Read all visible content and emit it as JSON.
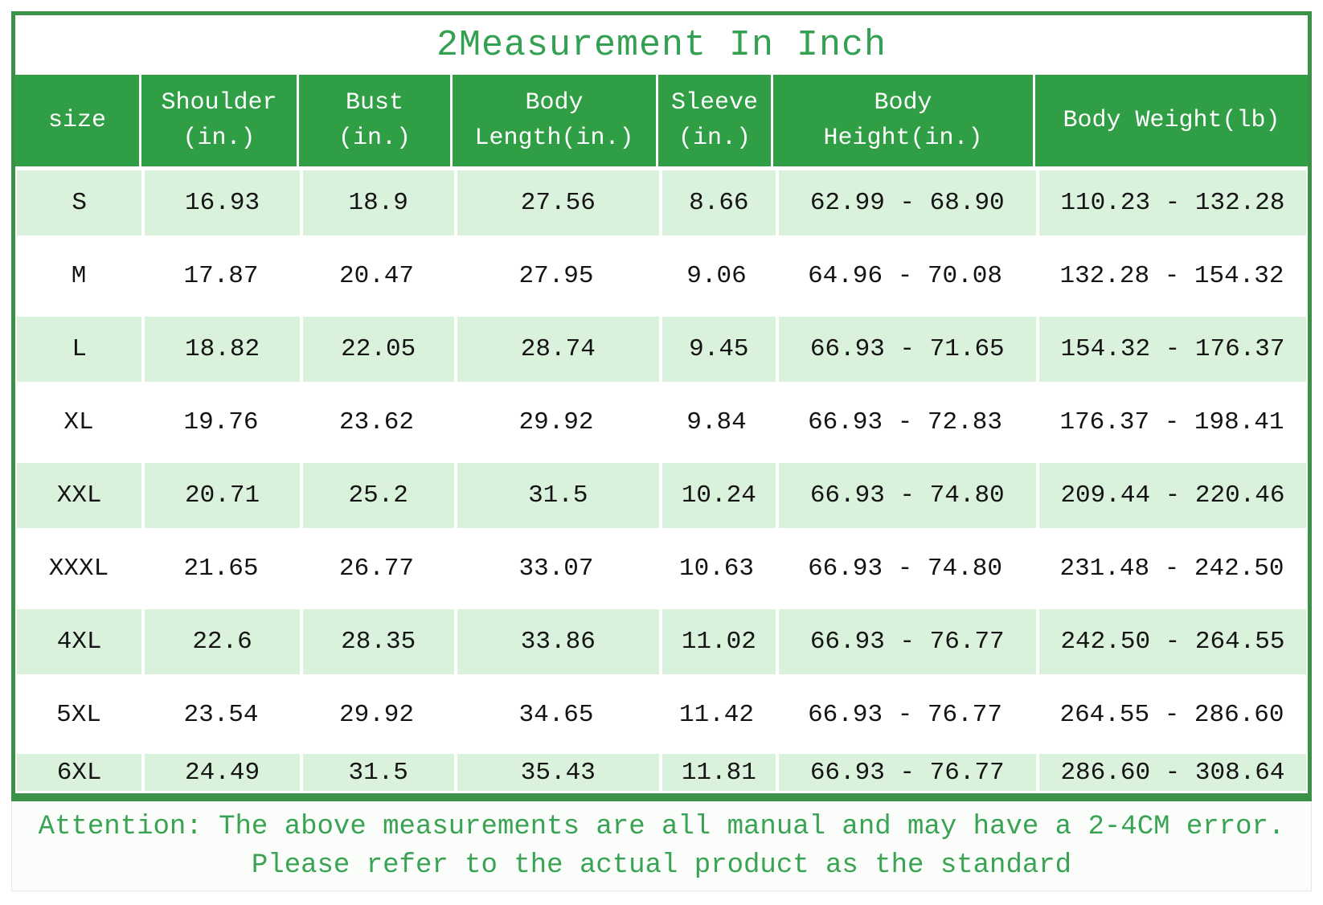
{
  "title": "2Measurement In Inch",
  "colors": {
    "header_green": "#2f9e44",
    "frame_green": "#3c9149",
    "row_light_green": "#daf1dc",
    "title_green": "#33a052",
    "note_green": "#3aa353"
  },
  "table": {
    "columns": [
      {
        "id": "size",
        "lines": [
          "size"
        ]
      },
      {
        "id": "shoulder",
        "lines": [
          "Shoulder",
          "(in.)"
        ]
      },
      {
        "id": "bust",
        "lines": [
          "Bust",
          "(in.)"
        ]
      },
      {
        "id": "body-length",
        "lines": [
          "Body",
          "Length(in.)"
        ]
      },
      {
        "id": "sleeve",
        "lines": [
          "Sleeve",
          "(in.)"
        ]
      },
      {
        "id": "body-height",
        "lines": [
          "Body",
          "Height(in.)"
        ]
      },
      {
        "id": "body-weight",
        "lines": [
          "Body Weight(lb)"
        ]
      }
    ],
    "rows": [
      {
        "cells": [
          "S",
          "16.93",
          "18.9",
          "27.56",
          "8.66",
          "62.99 - 68.90",
          "110.23 - 132.28"
        ]
      },
      {
        "cells": [
          "M",
          "17.87",
          "20.47",
          "27.95",
          "9.06",
          "64.96 - 70.08",
          "132.28 - 154.32"
        ]
      },
      {
        "cells": [
          "L",
          "18.82",
          "22.05",
          "28.74",
          "9.45",
          "66.93 - 71.65",
          "154.32 - 176.37"
        ]
      },
      {
        "cells": [
          "XL",
          "19.76",
          "23.62",
          "29.92",
          "9.84",
          "66.93 - 72.83",
          "176.37 - 198.41"
        ]
      },
      {
        "cells": [
          "XXL",
          "20.71",
          "25.2",
          "31.5",
          "10.24",
          "66.93 - 74.80",
          "209.44 - 220.46"
        ]
      },
      {
        "cells": [
          "XXXL",
          "21.65",
          "26.77",
          "33.07",
          "10.63",
          "66.93 - 74.80",
          "231.48 - 242.50"
        ]
      },
      {
        "cells": [
          "4XL",
          "22.6",
          "28.35",
          "33.86",
          "11.02",
          "66.93 - 76.77",
          "242.50 - 264.55"
        ]
      },
      {
        "cells": [
          "5XL",
          "23.54",
          "29.92",
          "34.65",
          "11.42",
          "66.93 - 76.77",
          "264.55 - 286.60"
        ]
      },
      {
        "cells": [
          "6XL",
          "24.49",
          "31.5",
          "35.43",
          "11.81",
          "66.93 - 76.77",
          "286.60 - 308.64"
        ]
      }
    ]
  },
  "note": {
    "line1": "Attention: The above measurements are all manual and may have a 2-4CM error.",
    "line2": "Please refer to the actual product as the standard"
  }
}
